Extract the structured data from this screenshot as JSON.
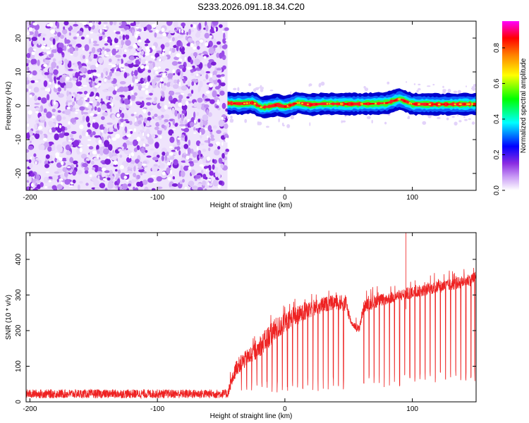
{
  "figure": {
    "title": "S233.2026.091.18.34.C20"
  },
  "chart_data": [
    {
      "type": "heatmap",
      "title": "S233.2026.091.18.34.C20",
      "xlabel": "Height of straight line (km)",
      "ylabel": "Frequency (Hz)",
      "xlim": [
        -203,
        150
      ],
      "ylim": [
        -25,
        25
      ],
      "x_ticks": [
        -200,
        -100,
        0,
        100
      ],
      "x_tick_labels": [
        "-200",
        "-100",
        "0",
        "100"
      ],
      "y_ticks": [
        -20,
        -10,
        0,
        10,
        20
      ],
      "y_tick_labels": [
        "-20",
        "-10",
        "0",
        "10",
        "20"
      ],
      "noise_region_x": [
        -203,
        -45
      ],
      "signal_region_x": [
        -45,
        150
      ],
      "signal_track": {
        "x": [
          -45,
          -35,
          -25,
          -18,
          -12,
          -6,
          0,
          5,
          10,
          20,
          30,
          50,
          70,
          80,
          90,
          100,
          120,
          150
        ],
        "freq": [
          0.8,
          0.6,
          0.9,
          -0.5,
          -0.2,
          0.3,
          -0.3,
          0.2,
          0.9,
          0.3,
          0.6,
          0.5,
          0.6,
          0.8,
          2.0,
          0.5,
          0.4,
          0.5
        ]
      },
      "colorbar": {
        "label": "Normalized spectral amplitude",
        "range": [
          0.0,
          0.95
        ],
        "ticks": [
          0.0,
          0.2,
          0.4,
          0.6,
          0.8
        ],
        "tick_labels": [
          "0.0",
          "0.2",
          "0.4",
          "0.6",
          "0.8"
        ],
        "colormap": [
          "#ffffff",
          "#8a2be2",
          "#0000ff",
          "#00ffff",
          "#00ff00",
          "#ffff00",
          "#ff0000",
          "#ff00ff"
        ]
      }
    },
    {
      "type": "line",
      "xlabel": "Height of straight line (km)",
      "ylabel": "SNR (10 * v/v)",
      "xlim": [
        -203,
        150
      ],
      "ylim": [
        0,
        475
      ],
      "x_ticks": [
        -200,
        -100,
        0,
        100
      ],
      "x_tick_labels": [
        "-200",
        "-100",
        "0",
        "100"
      ],
      "y_ticks": [
        0,
        100,
        200,
        300,
        400
      ],
      "y_tick_labels": [
        "0",
        "100",
        "200",
        "300",
        "400"
      ],
      "color": "#ee2222",
      "envelope": {
        "x": [
          -203,
          -45,
          -38,
          -20,
          -10,
          0,
          10,
          20,
          30,
          40,
          48,
          52,
          58,
          62,
          70,
          80,
          90,
          100,
          110,
          120,
          130,
          140,
          150
        ],
        "upper": [
          35,
          35,
          120,
          180,
          230,
          250,
          270,
          280,
          295,
          300,
          300,
          230,
          215,
          285,
          300,
          305,
          315,
          325,
          330,
          340,
          345,
          355,
          370
        ],
        "lower": [
          10,
          10,
          75,
          125,
          160,
          190,
          215,
          235,
          250,
          260,
          250,
          215,
          190,
          250,
          262,
          272,
          282,
          290,
          298,
          305,
          312,
          320,
          330
        ]
      },
      "dropouts": [
        -34,
        -30,
        -26,
        -22,
        -18,
        -14,
        -10,
        -6,
        -2,
        2,
        6,
        10,
        14,
        18,
        22,
        26,
        30,
        34,
        38,
        42,
        46,
        62,
        66,
        70,
        74,
        78,
        82,
        86,
        90,
        94,
        98,
        102,
        106,
        110,
        114,
        118,
        122,
        126,
        130,
        134,
        138,
        142,
        146,
        149
      ],
      "dropout_min": 25,
      "spikes": [
        {
          "x": 95,
          "y": 475
        }
      ]
    }
  ]
}
